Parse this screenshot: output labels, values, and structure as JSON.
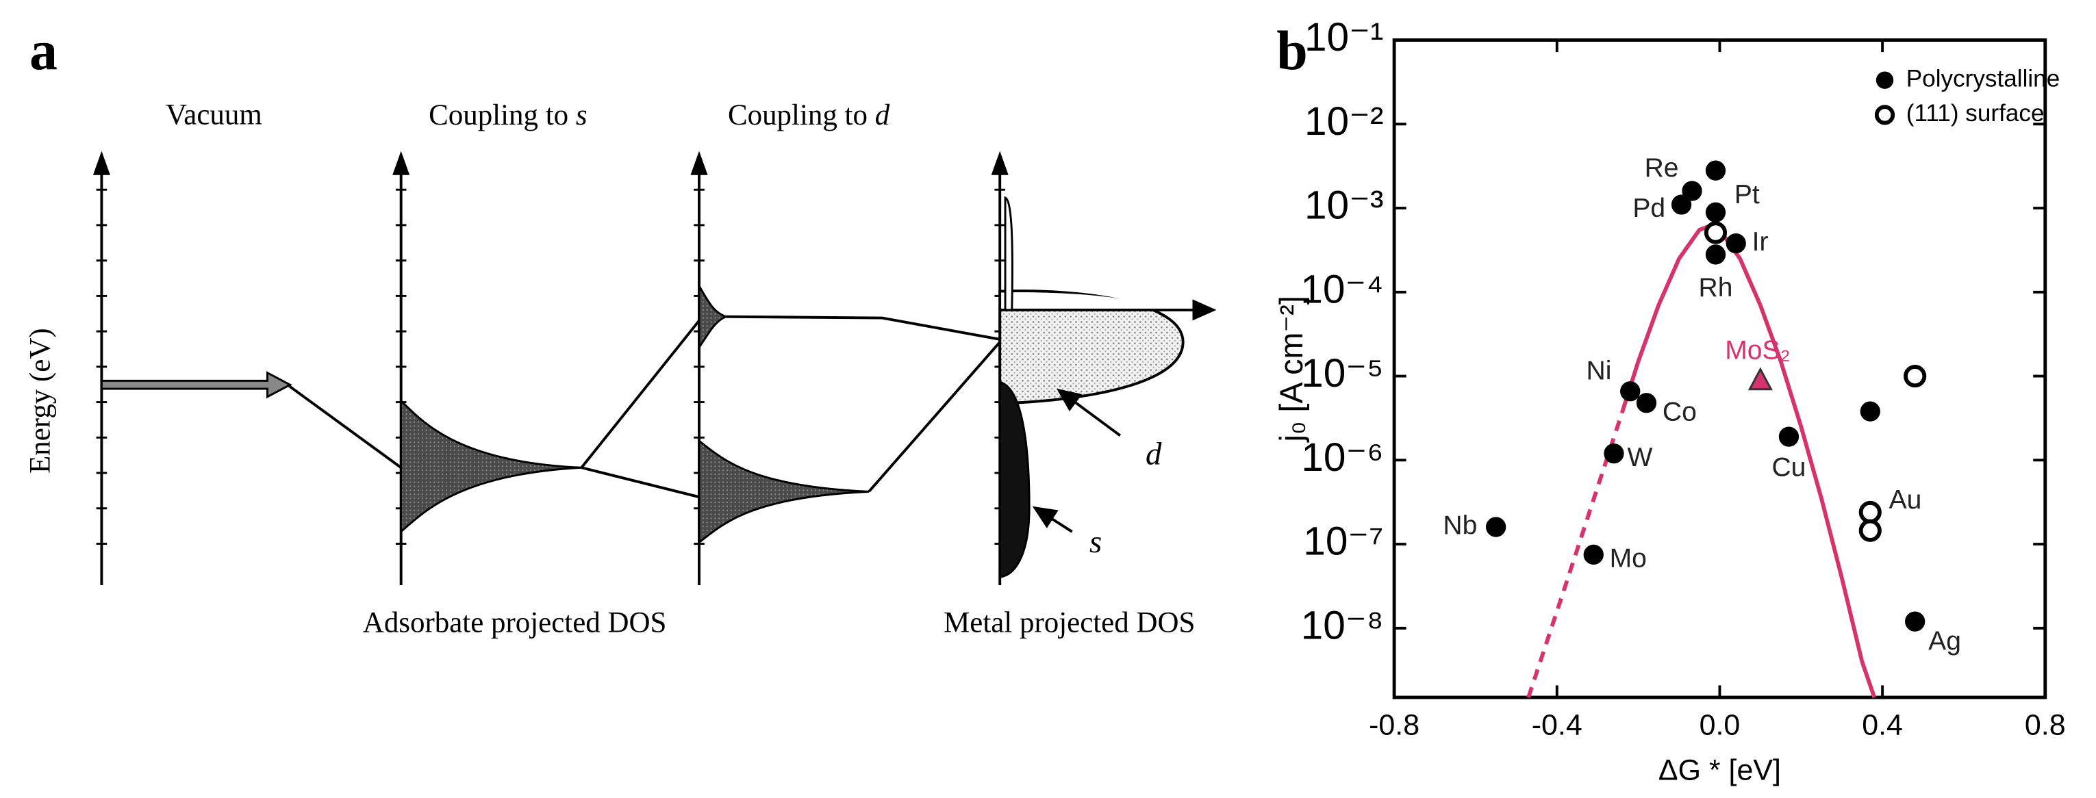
{
  "panel_a": {
    "label": "a",
    "columns": [
      {
        "title": "Vacuum"
      },
      {
        "title": "Coupling to ",
        "symbol": "s"
      },
      {
        "title": "Coupling to ",
        "symbol": "d"
      }
    ],
    "y_label": "Energy (eV)",
    "captions": [
      "Adsorbate projected DOS",
      "Metal projected DOS"
    ],
    "band_labels": [
      "d",
      "s"
    ]
  },
  "panel_b_label": "b",
  "chart_data": {
    "type": "scatter",
    "xlabel": "ΔG * [eV]",
    "ylabel": "j₀ [A cm⁻²]",
    "xlim": [
      -0.8,
      0.8
    ],
    "xticks": [
      -0.8,
      -0.4,
      {
        "value": 0,
        "label": "0.0"
      },
      0.4,
      0.8
    ],
    "ylim": [
      1.5e-09,
      0.1
    ],
    "log_y": true,
    "yticks": [
      {
        "value": 1e-08,
        "label": "10⁻⁸"
      },
      {
        "value": 1e-07,
        "label": "10⁻⁷"
      },
      {
        "value": 1e-06,
        "label": "10⁻⁶"
      },
      {
        "value": 1e-05,
        "label": "10⁻⁵"
      },
      {
        "value": 0.0001,
        "label": "10⁻⁴"
      },
      {
        "value": 0.001,
        "label": "10⁻³"
      },
      {
        "value": 0.01,
        "label": "10⁻²"
      },
      {
        "value": 0.1,
        "label": "10⁻¹"
      }
    ],
    "legend": "upper right",
    "series": [
      {
        "name": "Polycrystalline",
        "marker": "filled",
        "color": "#000000",
        "x": [
          -0.068,
          -0.094,
          -0.01,
          -0.01,
          -0.01,
          0.04,
          -0.22,
          -0.18,
          -0.26,
          -0.55,
          -0.31,
          0.17,
          0.37,
          0.48
        ],
        "values": [
          0.0016,
          0.0011,
          0.0028,
          0.00089,
          0.00028,
          0.00038,
          6.6e-06,
          4.8e-06,
          1.2e-06,
          1.6e-07,
          7.5e-08,
          1.9e-06,
          3.8e-06,
          1.2e-08
        ],
        "labels": [
          "Re",
          "Pd",
          null,
          "Pt",
          "Rh",
          "Ir",
          "Ni",
          "Co",
          "W",
          "Nb",
          "Mo",
          "Cu",
          null,
          "Ag"
        ]
      },
      {
        "name": "(111) surface",
        "marker": "open",
        "color": "#000000",
        "x": [
          -0.01,
          0.48,
          0.37,
          0.37
        ],
        "values": [
          0.00051,
          1e-05,
          2.4e-07,
          1.45e-07
        ],
        "labels": [
          null,
          null,
          "Au",
          null
        ]
      }
    ],
    "highlight": {
      "label": "MoS₂",
      "x": 0.1,
      "value": 8.7e-06,
      "color": "#d6336c"
    },
    "curve": [
      {
        "style": "dashed",
        "color": "#d6336c",
        "x": [
          -0.47,
          -0.4,
          -0.35,
          -0.3,
          -0.24
        ],
        "values": [
          1.5e-09,
          1.6e-08,
          8.7e-08,
          4.8e-07,
          3.7e-06
        ]
      },
      {
        "style": "solid",
        "color": "#d6336c",
        "x": [
          -0.24,
          -0.2,
          -0.15,
          -0.1,
          -0.05,
          -0.03,
          0.0,
          0.05,
          0.1,
          0.15,
          0.2,
          0.25,
          0.3,
          0.35,
          0.38
        ],
        "values": [
          3.7e-06,
          1.5e-05,
          7e-05,
          0.00025,
          0.00055,
          0.0006,
          0.00055,
          0.00025,
          7e-05,
          1.5e-05,
          2.5e-06,
          3.5e-07,
          4e-08,
          4e-09,
          1.5e-09
        ]
      }
    ]
  }
}
